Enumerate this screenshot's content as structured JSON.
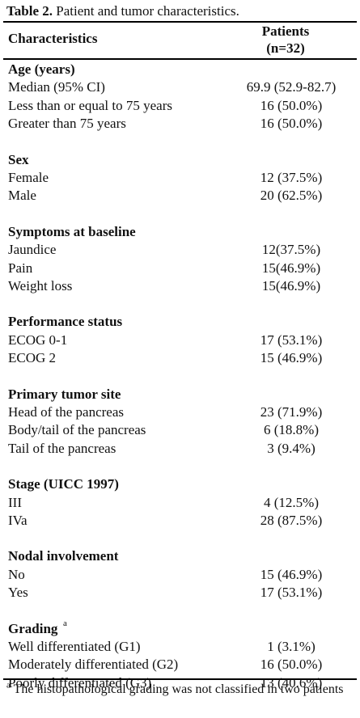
{
  "caption": {
    "prefix": "Table 2.",
    "text": " Patient and tumor characteristics."
  },
  "header": {
    "left": "Characteristics",
    "right_line1": "Patients",
    "right_line2": "(n=32)"
  },
  "rows": [
    {
      "label": "Age (years)",
      "value": "",
      "section": true
    },
    {
      "label": "Median (95% CI)",
      "value": "69.9 (52.9-82.7)"
    },
    {
      "label": "Less than or equal to 75 years",
      "value": "16 (50.0%)"
    },
    {
      "label": "Greater than 75 years",
      "value": "16 (50.0%)"
    },
    {
      "label": "Sex",
      "value": "",
      "section": true
    },
    {
      "label": "Female",
      "value": "12 (37.5%)"
    },
    {
      "label": "Male",
      "value": "20 (62.5%)"
    },
    {
      "label": "Symptoms at baseline",
      "value": "",
      "section": true
    },
    {
      "label": "Jaundice",
      "value": "12(37.5%)"
    },
    {
      "label": "Pain",
      "value": "15(46.9%)"
    },
    {
      "label": "Weight loss",
      "value": "15(46.9%)"
    },
    {
      "label": "Performance status",
      "value": "",
      "section": true
    },
    {
      "label": "ECOG 0-1",
      "value": "17 (53.1%)"
    },
    {
      "label": "ECOG 2",
      "value": "15 (46.9%)"
    },
    {
      "label": "Primary tumor site",
      "value": "",
      "section": true
    },
    {
      "label": "Head of the pancreas",
      "value": "23 (71.9%)"
    },
    {
      "label": "Body/tail of the pancreas",
      "value": "6 (18.8%)"
    },
    {
      "label": "Tail of the pancreas",
      "value": "3 (9.4%)"
    },
    {
      "label": "Stage (UICC 1997)",
      "value": "",
      "section": true
    },
    {
      "label": "III",
      "value": "4 (12.5%)"
    },
    {
      "label": "IVa",
      "value": "28 (87.5%)"
    },
    {
      "label": "Nodal involvement",
      "value": "",
      "section": true
    },
    {
      "label": "No",
      "value": "15 (46.9%)"
    },
    {
      "label": "Yes",
      "value": "17 (53.1%)"
    },
    {
      "label": "Grading",
      "value": "",
      "section": true,
      "sup": "a"
    },
    {
      "label": "Well differentiated (G1)",
      "value": "1 (3.1%)"
    },
    {
      "label": "Moderately differentiated (G2)",
      "value": "16 (50.0%)"
    },
    {
      "label": "Poorly differentiated (G3)",
      "value": "13 (40.6%)"
    }
  ],
  "footnote": {
    "mark": "a",
    "text": " The histopathological grading was not classified in two patients"
  }
}
